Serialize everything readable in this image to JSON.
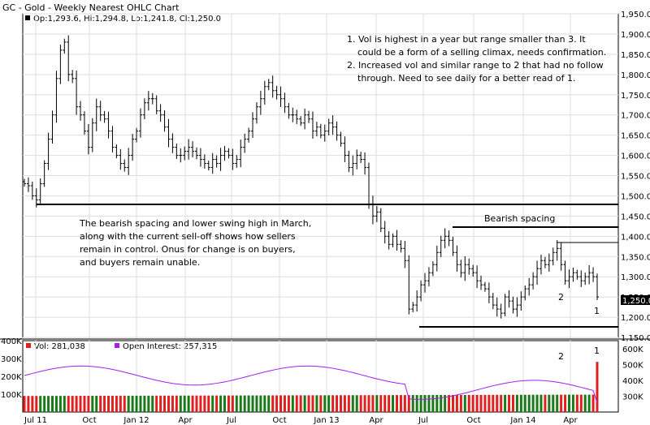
{
  "header": {
    "title": "GC - Gold - Weekly Nearest OHLC Chart",
    "ohlc_readout": "Op:1,293.6, Hi:1,294.8, Lo:1,241.8, Cl:1,250.0",
    "last_price_label": "1,250.0"
  },
  "volume_panel": {
    "vol_readout": "Vol: 281,038",
    "oi_readout": "Open Interest: 257,315"
  },
  "annotations": {
    "note1_line1": "1. Vol is highest in a year but range smaller than 3.  It",
    "note1_line2": "could be a form of a selling climax, needs confirmation.",
    "note2_line1": "2. Increased vol and similar range to 2 that had no follow",
    "note2_line2": "through.  Need to see daily for a better read of 1.",
    "left_line1": "The bearish spacing and lower swing high in March,",
    "left_line2": "along with the current sell-off shows how sellers",
    "left_line3": "remain in control.  Onus for change is on buyers,",
    "left_line4": "and buyers remain unable.",
    "bearish_spacing": "Bearish spacing",
    "marker_2": "2",
    "marker_1": "1",
    "vol_marker_2": "2",
    "vol_marker_1": "1"
  },
  "colors": {
    "bar": "#000000",
    "vol_up": "#1a7a1a",
    "vol_down": "#e02020",
    "open_interest": "#a020f0",
    "grid": "#dddddd"
  },
  "chart_data": {
    "type": "ohlc",
    "price_axis": {
      "min": 1150,
      "max": 1950,
      "ticks": [
        "1,150.0",
        "1,200.0",
        "1,250.0",
        "1,300.0",
        "1,350.0",
        "1,400.0",
        "1,450.0",
        "1,500.0",
        "1,550.0",
        "1,600.0",
        "1,650.0",
        "1,700.0",
        "1,750.0",
        "1,800.0",
        "1,850.0",
        "1,900.0",
        "1,950.0"
      ]
    },
    "volume_axis": {
      "min": 0,
      "max": 400000,
      "ticks": [
        "100K",
        "200K",
        "300K",
        "400K"
      ]
    },
    "oi_axis": {
      "min": 200000,
      "max": 650000,
      "ticks": [
        "300K",
        "400K",
        "500K",
        "600K"
      ]
    },
    "x_labels": [
      "Jul 11",
      "Oct",
      "Jan 12",
      "Apr",
      "Jul",
      "Oct",
      "Jan 13",
      "Apr",
      "Jul",
      "Oct",
      "Jan 14",
      "Apr"
    ],
    "close_series": [
      1530,
      1525,
      1500,
      1490,
      1530,
      1580,
      1640,
      1700,
      1790,
      1860,
      1880,
      1800,
      1790,
      1720,
      1700,
      1660,
      1620,
      1680,
      1720,
      1700,
      1690,
      1660,
      1620,
      1600,
      1580,
      1570,
      1600,
      1640,
      1660,
      1700,
      1730,
      1740,
      1740,
      1710,
      1700,
      1670,
      1640,
      1620,
      1600,
      1600,
      1610,
      1620,
      1610,
      1600,
      1590,
      1580,
      1570,
      1590,
      1580,
      1600,
      1610,
      1600,
      1580,
      1590,
      1620,
      1640,
      1660,
      1690,
      1720,
      1740,
      1770,
      1780,
      1760,
      1750,
      1740,
      1720,
      1700,
      1700,
      1690,
      1680,
      1700,
      1690,
      1660,
      1670,
      1650,
      1660,
      1680,
      1670,
      1650,
      1630,
      1600,
      1570,
      1580,
      1600,
      1590,
      1570,
      1480,
      1450,
      1460,
      1420,
      1400,
      1380,
      1400,
      1380,
      1370,
      1340,
      1220,
      1230,
      1250,
      1280,
      1290,
      1310,
      1330,
      1360,
      1390,
      1400,
      1390,
      1360,
      1330,
      1310,
      1330,
      1320,
      1310,
      1290,
      1280,
      1270,
      1250,
      1230,
      1220,
      1210,
      1250,
      1240,
      1220,
      1230,
      1250,
      1270,
      1280,
      1300,
      1320,
      1340,
      1330,
      1340,
      1360,
      1370,
      1330,
      1290,
      1300,
      1310,
      1300,
      1290,
      1300,
      1310,
      1300,
      1250
    ],
    "volume_peak": 281038,
    "open_interest_last": 257315
  }
}
